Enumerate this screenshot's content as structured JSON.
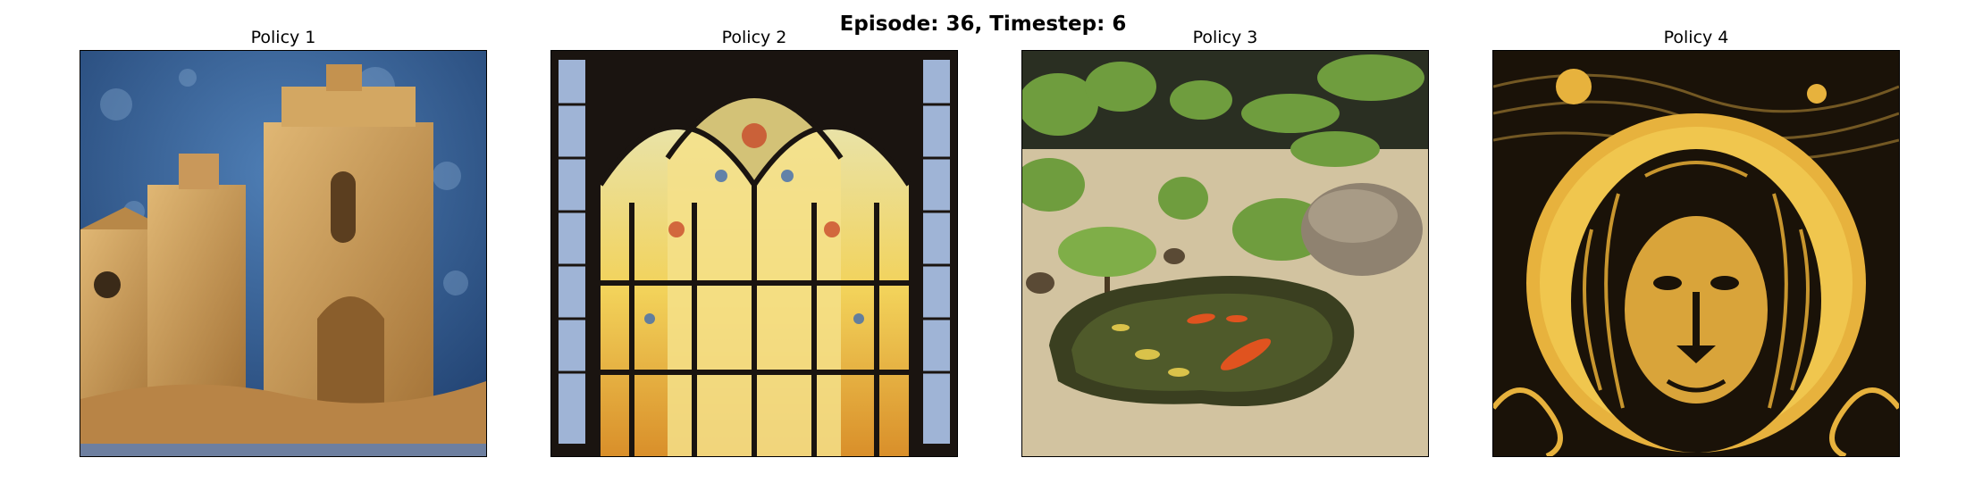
{
  "figure": {
    "suptitle": "Episode: 36, Timestep: 6"
  },
  "panels": [
    {
      "title": "Policy 1",
      "image": "sand-castle-on-blue-textured-background"
    },
    {
      "title": "Policy 2",
      "image": "gothic-stained-glass-window"
    },
    {
      "title": "Policy 3",
      "image": "japanese-zen-garden-with-koi-pond"
    },
    {
      "title": "Policy 4",
      "image": "woodcut-lion-head-with-golden-sun"
    }
  ],
  "colors": {
    "sky_blue": "#2f5a8e",
    "sand": "#c79a58",
    "glass_yellow": "#f2d25a",
    "gravel": "#d2c3a0",
    "foliage": "#6f9d3e",
    "gold": "#e7b23d",
    "ink": "#1a1208"
  }
}
